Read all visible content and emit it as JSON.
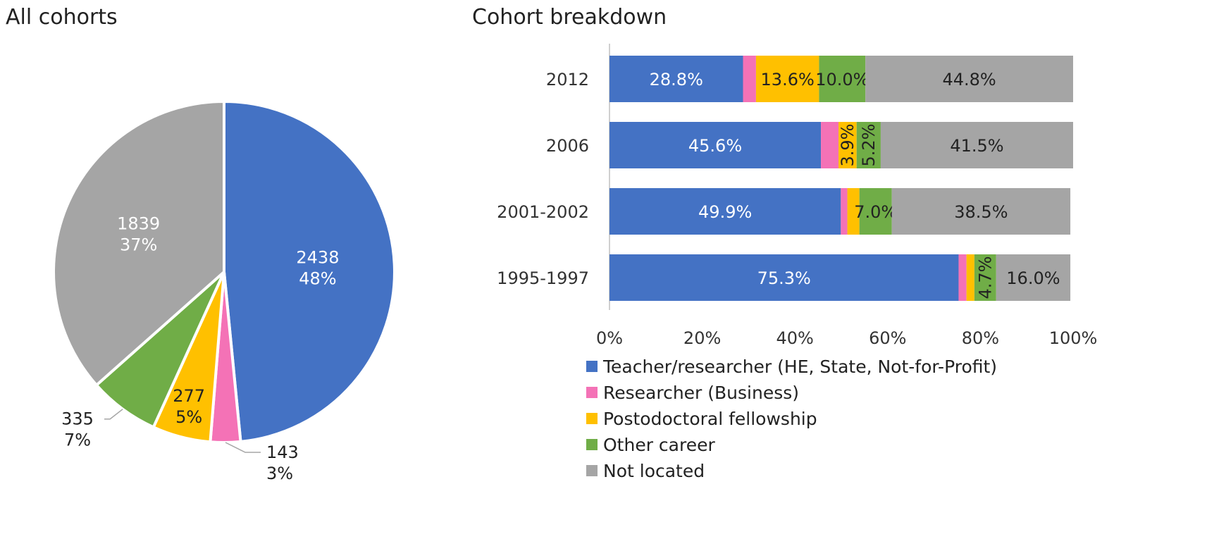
{
  "chart_data": [
    {
      "type": "pie",
      "title": "All cohorts",
      "slices": [
        {
          "name": "Teacher/researcher (HE, State, Not-for-Profit)",
          "count": "2438",
          "percent": "48%",
          "value": 2438,
          "color": "#4472C4",
          "label_color": "#ffffff"
        },
        {
          "name": "Researcher (Business)",
          "count": "143",
          "percent": "3%",
          "value": 143,
          "color": "#F472B6",
          "label_color": "#222222"
        },
        {
          "name": "Postodoctoral fellowship",
          "count": "277",
          "percent": "5%",
          "value": 277,
          "color": "#FFC000",
          "label_color": "#222222"
        },
        {
          "name": "Other career",
          "count": "335",
          "percent": "7%",
          "value": 335,
          "color": "#70AD47",
          "label_color": "#222222"
        },
        {
          "name": "Not located",
          "count": "1839",
          "percent": "37%",
          "value": 1839,
          "color": "#A5A5A5",
          "label_color": "#ffffff"
        }
      ]
    },
    {
      "type": "bar",
      "orientation": "horizontal",
      "stacked": true,
      "title": "Cohort breakdown",
      "categories": [
        "2012",
        "2006",
        "2001-2002",
        "1995-1997"
      ],
      "xlim": [
        0,
        100
      ],
      "x_ticks": [
        "0%",
        "20%",
        "40%",
        "60%",
        "80%",
        "100%"
      ],
      "legend_position": "bottom",
      "series": [
        {
          "name": "Teacher/researcher (HE, State, Not-for-Profit)",
          "color": "#4472C4",
          "label_color": "#ffffff",
          "values": [
            28.8,
            45.6,
            49.9,
            75.3
          ],
          "labels": [
            "28.8%",
            "45.6%",
            "49.9%",
            "75.3%"
          ]
        },
        {
          "name": "Researcher (Business)",
          "color": "#F472B6",
          "label_color": "#222222",
          "values": [
            2.8,
            3.8,
            1.4,
            1.7
          ],
          "labels": [
            "",
            "",
            "",
            ""
          ]
        },
        {
          "name": "Postodoctoral fellowship",
          "color": "#FFC000",
          "label_color": "#222222",
          "values": [
            13.6,
            3.9,
            2.6,
            1.7
          ],
          "labels": [
            "13.6%",
            "3.9%",
            "",
            ""
          ]
        },
        {
          "name": "Other career",
          "color": "#70AD47",
          "label_color": "#222222",
          "values": [
            10.0,
            5.2,
            7.0,
            4.7
          ],
          "labels": [
            "10.0%",
            "5.2%",
            "7.0%",
            "4.7%"
          ]
        },
        {
          "name": "Not located",
          "color": "#A5A5A5",
          "label_color": "#222222",
          "values": [
            44.8,
            41.5,
            38.5,
            16.0
          ],
          "labels": [
            "44.8%",
            "41.5%",
            "38.5%",
            "16.0%"
          ]
        }
      ]
    }
  ]
}
